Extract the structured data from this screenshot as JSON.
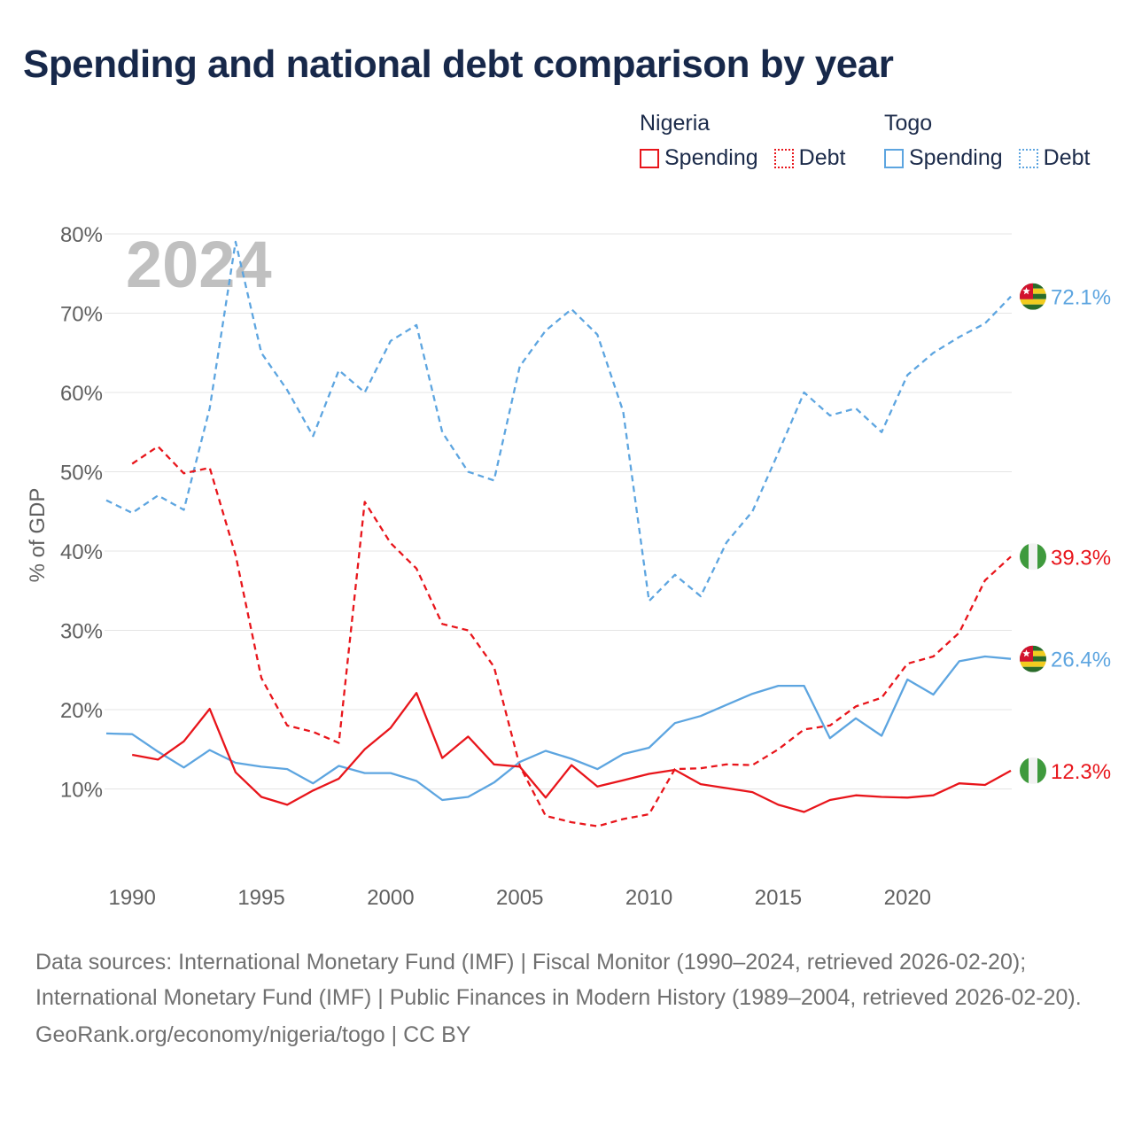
{
  "title": "Spending and national debt comparison by year",
  "legend": {
    "groups": [
      {
        "country": "Nigeria",
        "items": [
          {
            "label": "Spending"
          },
          {
            "label": "Debt"
          }
        ]
      },
      {
        "country": "Togo",
        "items": [
          {
            "label": "Spending"
          },
          {
            "label": "Debt"
          }
        ]
      }
    ]
  },
  "footer": {
    "sources": "Data sources: International Monetary Fund (IMF) | Fiscal Monitor (1990–2024, retrieved 2026-02-20); International Monetary Fund (IMF) | Public Finances in Modern History (1989–2004, retrieved 2026-02-20).",
    "credit": "GeoRank.org/economy/nigeria/togo | CC BY"
  },
  "colors": {
    "nigeria": "#e8151b",
    "togo": "#5da5e0",
    "grid": "#e4e4e4",
    "axis_text": "#606060",
    "year_watermark": "#c0c0c0"
  },
  "chart_data": {
    "type": "line",
    "title": "Spending and national debt comparison by year",
    "year_label": "2024",
    "xlabel": "",
    "ylabel": "% of GDP",
    "xlim": [
      1989,
      2024
    ],
    "ylim": [
      0,
      80
    ],
    "x_ticks": [
      1990,
      1995,
      2000,
      2005,
      2010,
      2015,
      2020
    ],
    "y_ticks": [
      10,
      20,
      30,
      40,
      50,
      60,
      70,
      80
    ],
    "y_tick_labels": [
      "10%",
      "20%",
      "30%",
      "40%",
      "50%",
      "60%",
      "70%",
      "80%"
    ],
    "grid": true,
    "legend_position": "top-right",
    "series": [
      {
        "name": "Togo Debt",
        "country": "Togo",
        "metric": "Debt",
        "color": "#5da5e0",
        "dash": "dashed",
        "flag": "togo",
        "end_label": "72.1%",
        "x": [
          1989,
          1990,
          1991,
          1992,
          1993,
          1994,
          1995,
          1996,
          1997,
          1998,
          1999,
          2000,
          2001,
          2002,
          2003,
          2004,
          2005,
          2006,
          2007,
          2008,
          2009,
          2010,
          2011,
          2012,
          2013,
          2014,
          2015,
          2016,
          2017,
          2018,
          2019,
          2020,
          2021,
          2022,
          2023,
          2024
        ],
        "values": [
          46.4,
          44.8,
          47.0,
          45.2,
          58.0,
          79.0,
          65.0,
          60.3,
          54.5,
          62.8,
          60.0,
          66.5,
          68.5,
          55.0,
          50.0,
          48.9,
          63.3,
          67.8,
          70.5,
          67.3,
          57.6,
          33.7,
          37.0,
          34.3,
          41.1,
          45.0,
          52.4,
          60.0,
          57.1,
          58.0,
          55.0,
          62.2,
          65.0,
          67.0,
          68.7,
          72.1
        ]
      },
      {
        "name": "Nigeria Debt",
        "country": "Nigeria",
        "metric": "Debt",
        "color": "#e8151b",
        "dash": "dashed",
        "flag": "nigeria",
        "end_label": "39.3%",
        "x": [
          1990,
          1991,
          1992,
          1993,
          1994,
          1995,
          1996,
          1997,
          1998,
          1999,
          2000,
          2001,
          2002,
          2003,
          2004,
          2005,
          2006,
          2007,
          2008,
          2009,
          2010,
          2011,
          2012,
          2013,
          2014,
          2015,
          2016,
          2017,
          2018,
          2019,
          2020,
          2021,
          2022,
          2023,
          2024
        ],
        "values": [
          51.0,
          53.2,
          49.8,
          50.5,
          39.5,
          24.0,
          18.0,
          17.2,
          15.8,
          46.2,
          41.0,
          37.8,
          30.8,
          30.0,
          25.4,
          12.9,
          6.6,
          5.8,
          5.3,
          6.2,
          6.8,
          12.5,
          12.6,
          13.1,
          13.0,
          15.0,
          17.5,
          18.0,
          20.4,
          21.5,
          25.8,
          26.7,
          29.7,
          36.3,
          39.3
        ]
      },
      {
        "name": "Togo Spending",
        "country": "Togo",
        "metric": "Spending",
        "color": "#5da5e0",
        "dash": "solid",
        "flag": "togo",
        "end_label": "26.4%",
        "x": [
          1989,
          1990,
          1991,
          1992,
          1993,
          1994,
          1995,
          1996,
          1997,
          1998,
          1999,
          2000,
          2001,
          2002,
          2003,
          2004,
          2005,
          2006,
          2007,
          2008,
          2009,
          2010,
          2011,
          2012,
          2013,
          2014,
          2015,
          2016,
          2017,
          2018,
          2019,
          2020,
          2021,
          2022,
          2023,
          2024
        ],
        "values": [
          17.0,
          16.9,
          14.7,
          12.7,
          14.9,
          13.3,
          12.8,
          12.5,
          10.7,
          12.9,
          12.0,
          12.0,
          11.0,
          8.6,
          9.0,
          10.8,
          13.4,
          14.8,
          13.8,
          12.5,
          14.4,
          15.2,
          18.3,
          19.2,
          20.6,
          22.0,
          23.0,
          23.0,
          16.4,
          18.9,
          16.7,
          23.8,
          21.9,
          26.1,
          26.7,
          26.4
        ]
      },
      {
        "name": "Nigeria Spending",
        "country": "Nigeria",
        "metric": "Spending",
        "color": "#e8151b",
        "dash": "solid",
        "flag": "nigeria",
        "end_label": "12.3%",
        "x": [
          1990,
          1991,
          1992,
          1993,
          1994,
          1995,
          1996,
          1997,
          1998,
          1999,
          2000,
          2001,
          2002,
          2003,
          2004,
          2005,
          2006,
          2007,
          2008,
          2009,
          2010,
          2011,
          2012,
          2013,
          2014,
          2015,
          2016,
          2017,
          2018,
          2019,
          2020,
          2021,
          2022,
          2023,
          2024
        ],
        "values": [
          14.3,
          13.7,
          16.0,
          20.1,
          12.1,
          9.0,
          8.0,
          9.8,
          11.3,
          15.0,
          17.7,
          22.1,
          13.9,
          16.6,
          13.1,
          12.8,
          8.9,
          13.0,
          10.3,
          11.1,
          11.9,
          12.4,
          10.6,
          10.1,
          9.6,
          8.0,
          7.1,
          8.6,
          9.2,
          9.0,
          8.9,
          9.2,
          10.7,
          10.5,
          12.3
        ]
      }
    ]
  }
}
